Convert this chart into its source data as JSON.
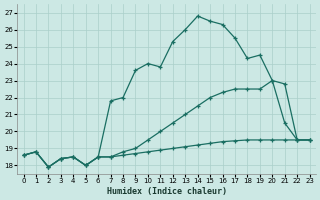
{
  "xlabel": "Humidex (Indice chaleur)",
  "bg_color": "#cce8e4",
  "grid_color": "#aacfca",
  "line_color": "#1a6e62",
  "xlim_min": -0.5,
  "xlim_max": 23.5,
  "ylim_min": 17.5,
  "ylim_max": 27.5,
  "yticks": [
    18,
    19,
    20,
    21,
    22,
    23,
    24,
    25,
    26,
    27
  ],
  "xticks": [
    0,
    1,
    2,
    3,
    4,
    5,
    6,
    7,
    8,
    9,
    10,
    11,
    12,
    13,
    14,
    15,
    16,
    17,
    18,
    19,
    20,
    21,
    22,
    23
  ],
  "line1_x": [
    0,
    1,
    2,
    3,
    4,
    5,
    6,
    7,
    8,
    9,
    10,
    11,
    12,
    13,
    14,
    15,
    16,
    17,
    18,
    19,
    20,
    21,
    22,
    23
  ],
  "line1_y": [
    18.6,
    18.8,
    17.9,
    18.4,
    18.5,
    18.0,
    18.5,
    18.5,
    18.6,
    18.7,
    18.8,
    18.9,
    19.0,
    19.1,
    19.2,
    19.3,
    19.4,
    19.45,
    19.5,
    19.5,
    19.5,
    19.5,
    19.5,
    19.5
  ],
  "line2_x": [
    0,
    1,
    2,
    3,
    4,
    5,
    6,
    7,
    8,
    9,
    10,
    11,
    12,
    13,
    14,
    15,
    16,
    17,
    18,
    19,
    20,
    21,
    22,
    23
  ],
  "line2_y": [
    18.6,
    18.8,
    17.9,
    18.4,
    18.5,
    18.0,
    18.5,
    18.5,
    18.8,
    19.0,
    19.5,
    20.0,
    20.5,
    21.0,
    21.5,
    22.0,
    22.3,
    22.5,
    22.5,
    22.5,
    23.0,
    22.8,
    19.5,
    19.5
  ],
  "line3_x": [
    0,
    1,
    2,
    3,
    4,
    5,
    6,
    7,
    8,
    9,
    10,
    11,
    12,
    13,
    14,
    15,
    16,
    17,
    18,
    19,
    20,
    21,
    22,
    23
  ],
  "line3_y": [
    18.6,
    18.8,
    17.9,
    18.4,
    18.5,
    18.0,
    18.5,
    21.8,
    22.0,
    23.6,
    24.0,
    23.8,
    25.3,
    26.0,
    26.8,
    26.5,
    26.3,
    25.5,
    24.3,
    24.5,
    23.0,
    20.5,
    19.5,
    19.5
  ]
}
